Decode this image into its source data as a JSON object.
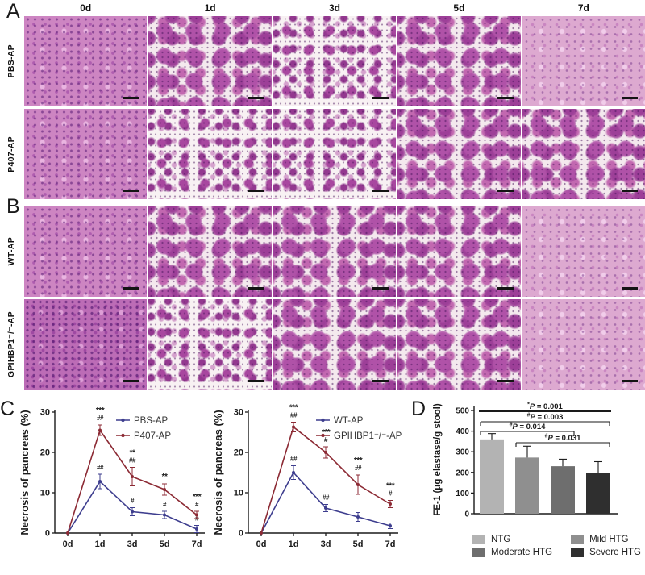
{
  "figure": {
    "panel_c": "C",
    "panel_d": "D"
  },
  "histology": {
    "column_headers": [
      "0d",
      "1d",
      "3d",
      "5d",
      "7d"
    ],
    "panels": [
      {
        "label": "A",
        "rows": [
          {
            "label": "PBS-AP",
            "cells": [
              "dense",
              "lobular",
              "sparse",
              "lobular",
              "light"
            ]
          },
          {
            "label": "P407-AP",
            "cells": [
              "dense",
              "sparse",
              "sparse",
              "lobular",
              "lobular"
            ]
          }
        ]
      },
      {
        "label": "B",
        "rows": [
          {
            "label": "WT-AP",
            "cells": [
              "dense",
              "lobular",
              "lobular",
              "lobular",
              "light"
            ]
          },
          {
            "label": "GPIHBP1⁻/⁻-AP",
            "cells": [
              "dense-dark",
              "sparse",
              "lobular",
              "lobular",
              "light"
            ]
          }
        ]
      }
    ]
  },
  "chart_data": [
    {
      "type": "line",
      "panel": "C-left",
      "ylabel": "Necrosis of pancreas (%)",
      "ylim": [
        0,
        30
      ],
      "yticks": [
        0,
        10,
        20,
        30
      ],
      "categories": [
        "0d",
        "1d",
        "3d",
        "5d",
        "7d"
      ],
      "legend_position": "top-right",
      "series": [
        {
          "name": "PBS-AP",
          "color": "#3d3d8e",
          "values": [
            0,
            12.8,
            5.3,
            4.5,
            1.0
          ],
          "errors": [
            0.2,
            1.8,
            1.0,
            0.9,
            0.9
          ],
          "annotations": [
            [],
            [
              "##"
            ],
            [
              "#"
            ],
            [
              "#"
            ],
            [
              "#"
            ]
          ]
        },
        {
          "name": "P407-AP",
          "color": "#8c2a34",
          "values": [
            0,
            25.5,
            14.0,
            10.8,
            4.5
          ],
          "errors": [
            0.2,
            1.3,
            2.3,
            1.4,
            0.9
          ],
          "annotations": [
            [],
            [
              "***",
              "##"
            ],
            [
              "**",
              "##"
            ],
            [
              "**"
            ],
            [
              "***",
              "#"
            ]
          ]
        }
      ]
    },
    {
      "type": "line",
      "panel": "C-right",
      "ylabel": "Necrosis of pancreas (%)",
      "ylim": [
        0,
        30
      ],
      "yticks": [
        0,
        10,
        20,
        30
      ],
      "categories": [
        "0d",
        "1d",
        "3d",
        "5d",
        "7d"
      ],
      "legend_position": "top-right",
      "series": [
        {
          "name": "WT-AP",
          "color": "#3d3d8e",
          "values": [
            0,
            15.0,
            6.2,
            4.0,
            1.8
          ],
          "errors": [
            0.2,
            1.7,
            0.9,
            1.1,
            0.7
          ],
          "annotations": [
            [],
            [
              "##"
            ],
            [
              "##"
            ],
            [],
            []
          ]
        },
        {
          "name": "GPIHBP1⁻/⁻-AP",
          "color": "#8c2a34",
          "values": [
            0,
            26.3,
            20.0,
            12.0,
            7.2
          ],
          "errors": [
            0.2,
            1.2,
            1.4,
            2.4,
            0.9
          ],
          "annotations": [
            [],
            [
              "***",
              "##"
            ],
            [
              "***",
              "#"
            ],
            [
              "***",
              "##"
            ],
            [
              "***",
              "#"
            ]
          ]
        }
      ]
    },
    {
      "type": "bar",
      "panel": "D",
      "ylabel": "FE-1 (μg elastase/g stool)",
      "ylim": [
        0,
        500
      ],
      "yticks": [
        0,
        100,
        200,
        300,
        400,
        500
      ],
      "categories": [
        "NTG",
        "Mild HTG",
        "Moderate HTG",
        "Severe HTG"
      ],
      "values": [
        360,
        272,
        230,
        197
      ],
      "errors": [
        28,
        55,
        34,
        55
      ],
      "colors": [
        "#b3b3b3",
        "#8f8f8f",
        "#6e6e6e",
        "#2f2f2f"
      ],
      "comparisons": [
        {
          "from": 0,
          "to": 3,
          "sym": "*",
          "text": "P = 0.001",
          "style": "line"
        },
        {
          "from": 0,
          "to": 3,
          "sym": "#",
          "text": "P = 0.003",
          "style": "bracket"
        },
        {
          "from": 0,
          "to": 2,
          "sym": "#",
          "text": "P = 0.014",
          "style": "bracket"
        },
        {
          "from": 1,
          "to": 3,
          "sym": "#",
          "text": "P = 0.031",
          "style": "bracket"
        }
      ],
      "legend": [
        {
          "label": "NTG",
          "color": "#b3b3b3"
        },
        {
          "label": "Moderate HTG",
          "color": "#6e6e6e"
        },
        {
          "label": "Mild HTG",
          "color": "#8f8f8f"
        },
        {
          "label": "Severe HTG",
          "color": "#2f2f2f"
        }
      ]
    }
  ]
}
